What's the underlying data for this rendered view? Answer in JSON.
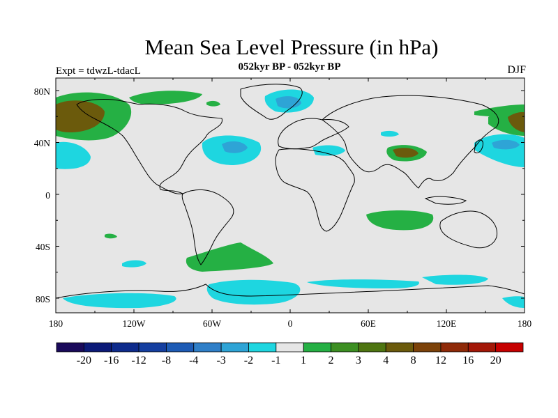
{
  "title": "Mean Sea Level Pressure (in hPa)",
  "subtitle": "052kyr BP - 052kyr BP",
  "experiment_label": "Expt = tdwzL-tdacL",
  "season": "DJF",
  "axes": {
    "x_ticks": [
      "180",
      "120W",
      "60W",
      "0",
      "60E",
      "120E",
      "180"
    ],
    "y_ticks": [
      "80N",
      "40N",
      "0",
      "40S",
      "80S"
    ]
  },
  "colorbar": {
    "labels": [
      "-20",
      "-16",
      "-12",
      "-8",
      "-4",
      "-3",
      "-2",
      "-1",
      "1",
      "2",
      "3",
      "4",
      "8",
      "12",
      "16",
      "20"
    ],
    "colors": [
      "#1a0a5a",
      "#0c1a78",
      "#0e2b8c",
      "#153fa0",
      "#1d5bb5",
      "#2f7fc8",
      "#2ea4d6",
      "#1ed6e0",
      "#e6e6e6",
      "#25b044",
      "#3c8f22",
      "#4e7511",
      "#6b5a0c",
      "#7c420a",
      "#8f2a08",
      "#a31707",
      "#c60000"
    ]
  },
  "map_colors": {
    "background": "#e6e6e6",
    "coast": "#000000",
    "neg1": "#1ed6e0",
    "neg2": "#2ea4d6",
    "neg3": "#2f7fc8",
    "pos1": "#25b044",
    "pos2": "#3c8f22",
    "pos3": "#6b5a0c"
  }
}
